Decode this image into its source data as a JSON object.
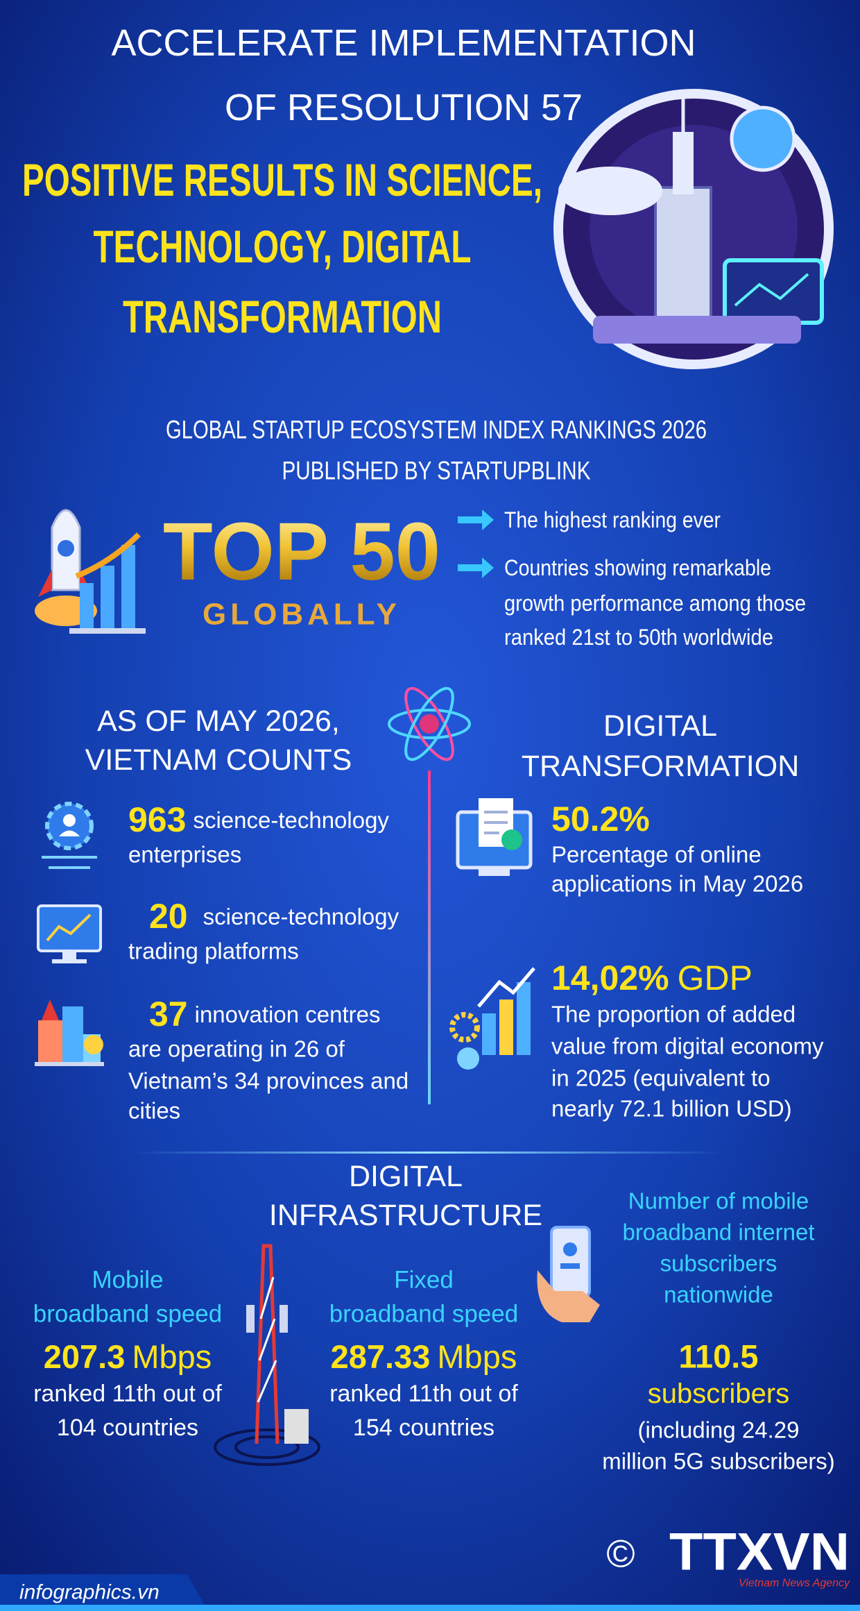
{
  "header": {
    "title_lines": [
      "ACCELERATE IMPLEMENTATION",
      "OF RESOLUTION 57"
    ],
    "subtitle_lines": [
      "POSITIVE RESULTS IN SCIENCE,",
      "TECHNOLOGY, DIGITAL",
      "TRANSFORMATION"
    ]
  },
  "ranking": {
    "heading_lines": [
      "GLOBAL STARTUP ECOSYSTEM INDEX RANKINGS 2026",
      "PUBLISHED BY STARTUPBLINK"
    ],
    "badge": "TOP 50",
    "badge_sub": "GLOBALLY",
    "bullets": [
      [
        "The highest ranking ever"
      ],
      [
        "Countries showing remarkable",
        "growth performance among those",
        "ranked 21st to 50th worldwide"
      ]
    ]
  },
  "vietnam_counts": {
    "heading_lines": [
      "AS OF MAY 2026,",
      "VIETNAM COUNTS"
    ],
    "items": [
      {
        "number": "963",
        "label": "science-technology",
        "lines": [
          "enterprises"
        ]
      },
      {
        "number": "20",
        "label": "science-technology",
        "lines": [
          "trading platforms"
        ]
      },
      {
        "number": "37",
        "label": "innovation centres",
        "lines": [
          "are operating in 26 of",
          "Vietnam’s 34 provinces and",
          "cities"
        ]
      }
    ]
  },
  "digital_transformation": {
    "heading_lines": [
      "DIGITAL",
      "TRANSFORMATION"
    ],
    "items": [
      {
        "number": "50.2%",
        "unit": null,
        "lines": [
          "Percentage of online",
          "applications in May 2026"
        ]
      },
      {
        "number": "14,02%",
        "unit": "GDP",
        "lines": [
          "The proportion of added",
          "value from digital economy",
          "in 2025 (equivalent to",
          "nearly 72.1 billion USD)"
        ]
      }
    ]
  },
  "digital_infrastructure": {
    "heading_lines": [
      "DIGITAL",
      "INFRASTRUCTURE"
    ],
    "columns": [
      {
        "label_lines": [
          "Mobile",
          "broadband speed"
        ],
        "number": "207.3",
        "unit": "Mbps",
        "lines": [
          "ranked 11th out of",
          "104 countries"
        ]
      },
      {
        "label_lines": [
          "Fixed",
          "broadband speed"
        ],
        "number": "287.33",
        "unit": "Mbps",
        "lines": [
          "ranked 11th out of",
          "154 countries"
        ]
      },
      {
        "label_lines": [
          "Number of mobile",
          "broadband internet",
          "subscribers",
          "nationwide"
        ],
        "number": "110.5",
        "unit": "subscribers",
        "lines": [
          "(including 24.29",
          "million 5G subscribers)"
        ]
      }
    ]
  },
  "footer": {
    "website": "infographics.vn",
    "copyright": "©",
    "logo": "TTXVN",
    "logo_sub": "Vietnam News Agency"
  }
}
